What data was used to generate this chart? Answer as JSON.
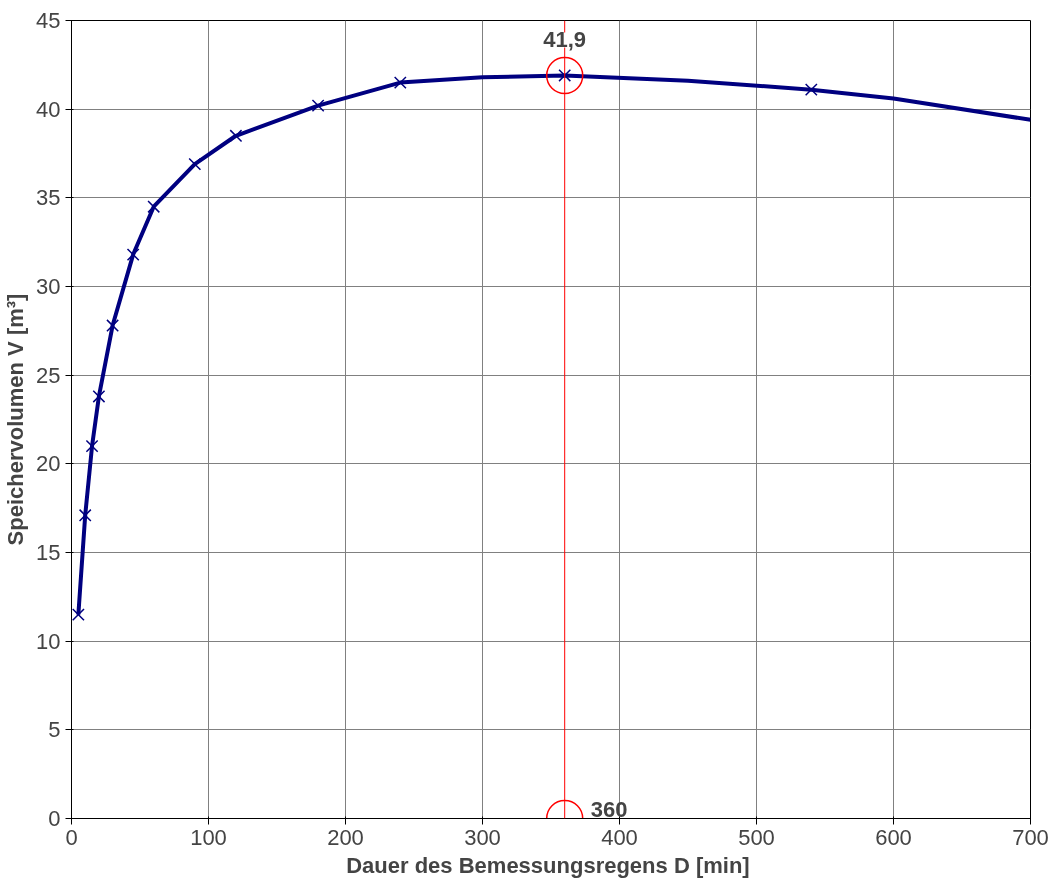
{
  "chart_data": {
    "type": "line",
    "xlabel": "Dauer des Bemessungsregens  D [min]",
    "ylabel": "Speichervolumen V [m³]",
    "xlim": [
      0,
      700
    ],
    "xticks": [
      0,
      100,
      200,
      300,
      400,
      500,
      600,
      700
    ],
    "ylim": [
      0,
      45
    ],
    "yticks": [
      0,
      5,
      10,
      15,
      20,
      25,
      30,
      35,
      40,
      45
    ],
    "grid": true,
    "series": [
      {
        "color": "#000080",
        "marker": "none",
        "x": [
          5,
          10,
          15,
          20,
          30,
          45,
          60,
          90,
          120,
          180,
          240,
          300,
          360,
          450,
          540,
          600,
          700
        ],
        "values": [
          11.5,
          17.1,
          21.0,
          23.8,
          27.8,
          31.8,
          34.5,
          36.9,
          38.5,
          40.2,
          41.5,
          41.8,
          41.9,
          41.6,
          41.1,
          40.6,
          39.4
        ]
      },
      {
        "type": "scatter",
        "color": "#000080",
        "marker": "cross",
        "x": [
          5,
          10,
          15,
          20,
          30,
          45,
          60,
          90,
          120,
          180,
          240,
          360,
          540
        ],
        "values": [
          11.5,
          17.1,
          21.0,
          23.8,
          27.8,
          31.8,
          34.5,
          36.9,
          38.5,
          40.2,
          41.5,
          41.9,
          41.1
        ]
      }
    ],
    "ref_lines": [
      {
        "axis": "x",
        "value": 360,
        "color": "#ff0000",
        "line_style": "solid"
      }
    ],
    "annotations": [
      {
        "text": "41,9",
        "x": 360,
        "y": 41.9
      },
      {
        "text": "360",
        "x": 360,
        "y": 0
      }
    ]
  }
}
